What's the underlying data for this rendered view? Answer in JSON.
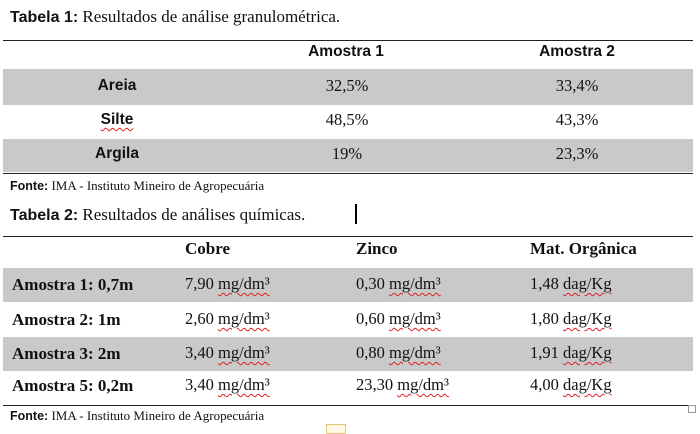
{
  "table1": {
    "caption_label": "Tabela 1:",
    "caption_text": " Resultados de análise granulométrica.",
    "headers": [
      "Amostra 1",
      "Amostra 2"
    ],
    "rows": [
      {
        "label": "Areia",
        "v1": "32,5%",
        "v2": "33,4%"
      },
      {
        "label": "Silte",
        "v1": "48,5%",
        "v2": "43,3%"
      },
      {
        "label": "Argila",
        "v1": "19%",
        "v2": "23,3%"
      }
    ],
    "fonte_label": "Fonte:",
    "fonte_text": " IMA - Instituto Mineiro de Agropecuária"
  },
  "table2": {
    "caption_label": "Tabela 2:",
    "caption_text": " Resultados de análises químicas.",
    "headers": [
      "Cobre",
      "Zinco",
      "Mat. Orgânica"
    ],
    "rows": [
      {
        "label": "Amostra 1: 0,7m",
        "cobre_num": "7,90",
        "cobre_unit": "mg/dm³",
        "zinco_num": "0,30",
        "zinco_unit": "mg/dm³",
        "mat_num": "1,48",
        "mat_unit": "dag/Kg"
      },
      {
        "label": "Amostra 2: 1m",
        "cobre_num": "2,60",
        "cobre_unit": "mg/dm³",
        "zinco_num": "0,60",
        "zinco_unit": "mg/dm³",
        "mat_num": "1,80",
        "mat_unit": "dag/Kg"
      },
      {
        "label": "Amostra 3: 2m",
        "cobre_num": "3,40",
        "cobre_unit": "mg/dm³",
        "zinco_num": "0,80",
        "zinco_unit": "mg/dm³",
        "mat_num": "1,91",
        "mat_unit": "dag/Kg"
      },
      {
        "label": "Amostra 5: 0,2m",
        "cobre_num": "3,40",
        "cobre_unit": "mg/dm³",
        "zinco_num": "23,30",
        "zinco_unit": "mg/dm³",
        "mat_num": "4,00",
        "mat_unit": "dag/Kg"
      }
    ],
    "fonte_label": "Fonte:",
    "fonte_text": " IMA - Instituto Mineiro de Agropecuária"
  },
  "colors": {
    "band": "#c9c9c9",
    "rule": "#222222",
    "spellcheck": "#dd2222"
  }
}
